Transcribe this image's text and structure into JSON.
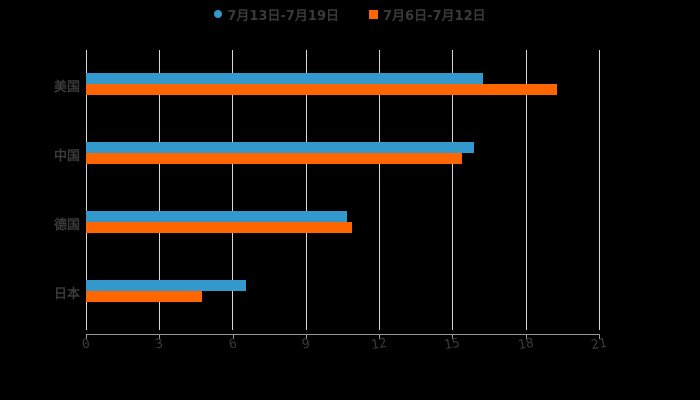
{
  "chart_data": {
    "type": "bar",
    "orientation": "horizontal",
    "title": "",
    "xlabel": "",
    "ylabel": "",
    "categories": [
      "美国",
      "中国",
      "德国",
      "日本"
    ],
    "series": [
      {
        "name": "7月13日-7月19日",
        "color": "#3399cc",
        "values": [
          16.25,
          15.9,
          10.7,
          6.55
        ]
      },
      {
        "name": "7月6日-7月12日",
        "color": "#ff6600",
        "values": [
          19.3,
          15.4,
          10.9,
          4.75
        ]
      }
    ],
    "xlim": [
      0,
      21
    ],
    "x_ticks": [
      "0",
      "3",
      "6",
      "9",
      "12",
      "15",
      "18",
      "21"
    ],
    "grid": true,
    "legend_position": "top"
  },
  "legend": {
    "items": [
      {
        "label": "7月13日-7月19日",
        "color": "#3399cc"
      },
      {
        "label": "7月6日-7月12日",
        "color": "#ff6600"
      }
    ]
  }
}
